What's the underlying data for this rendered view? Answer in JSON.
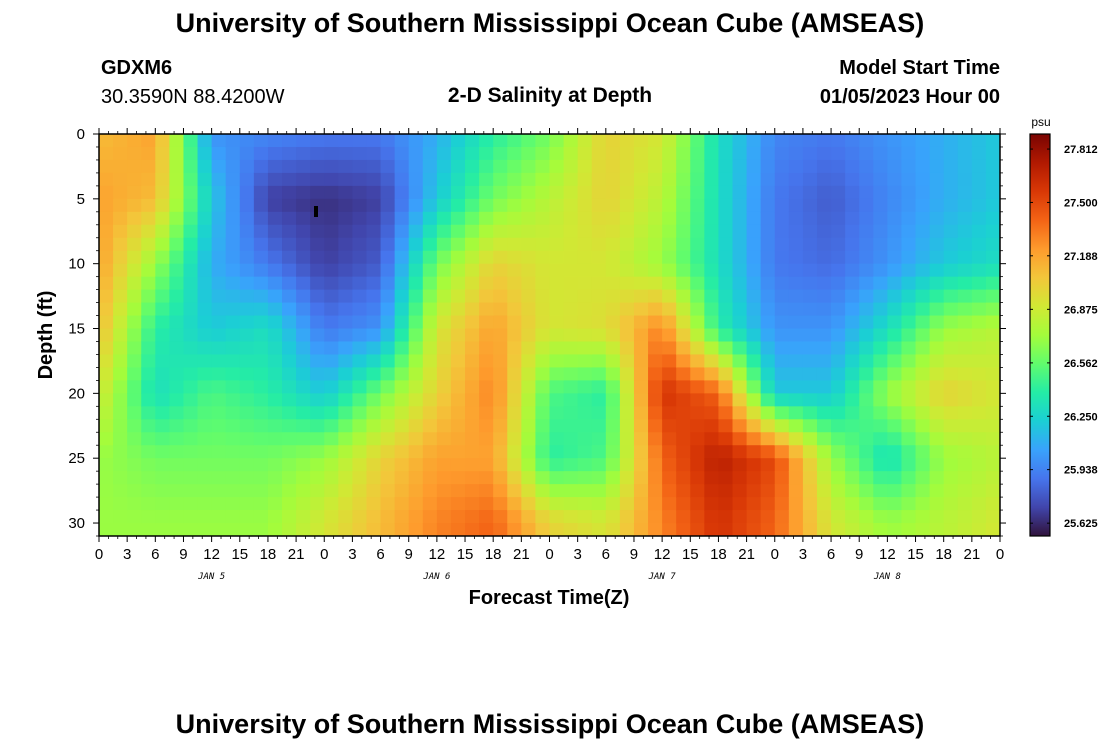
{
  "page": {
    "title": "University of Southern Mississippi Ocean Cube (AMSEAS)",
    "footer_title": "University of Southern Mississippi Ocean Cube (AMSEAS)",
    "station_id": "GDXM6",
    "coordinates": "30.3590N  88.4200W",
    "subtitle": "2-D Salinity at Depth",
    "model_start_label": "Model Start Time",
    "model_start_value": "01/05/2023 Hour 00"
  },
  "chart_data": {
    "type": "heatmap",
    "title": "2-D Salinity at Depth",
    "xlabel": "Forecast Time(Z)",
    "ylabel": "Depth (ft)",
    "x_range_hours": [
      0,
      96
    ],
    "x_ticks": [
      "0",
      "3",
      "6",
      "9",
      "12",
      "15",
      "18",
      "21",
      "0",
      "3",
      "6",
      "9",
      "12",
      "15",
      "18",
      "21",
      "0",
      "3",
      "6",
      "9",
      "12",
      "15",
      "18",
      "21",
      "0",
      "3",
      "6",
      "9",
      "12",
      "15",
      "18",
      "21",
      "0"
    ],
    "day_labels": [
      "JAN 5",
      "JAN 6",
      "JAN 7",
      "JAN 8"
    ],
    "y_range_ft": [
      0,
      31
    ],
    "y_ticks": [
      "0",
      "5",
      "10",
      "15",
      "20",
      "25",
      "30"
    ],
    "y_inverted": true,
    "colorbar": {
      "unit": "psu",
      "ticks": [
        "27.812",
        "27.500",
        "27.188",
        "26.875",
        "26.562",
        "26.250",
        "25.938",
        "25.625"
      ],
      "min": 25.55,
      "max": 27.9,
      "colormap": [
        "#30123b",
        "#4145ab",
        "#4675ed",
        "#39a2fc",
        "#1bcfd4",
        "#24eca6",
        "#61fc6c",
        "#a4fc3b",
        "#d1e834",
        "#f3c63a",
        "#fe9b2d",
        "#f36315",
        "#d93806",
        "#b11901",
        "#7a0402"
      ]
    },
    "data_columns_x_hours": [
      0,
      6,
      12,
      18,
      24,
      30,
      36,
      42,
      48,
      54,
      60,
      66,
      72,
      78,
      84,
      90,
      96
    ],
    "data_rows_depth_ft": [
      0,
      5,
      10,
      15,
      20,
      25,
      30
    ],
    "z": [
      [
        27.1,
        27.2,
        26.0,
        25.95,
        25.9,
        25.9,
        26.1,
        26.4,
        26.6,
        27.0,
        26.9,
        26.3,
        25.95,
        25.9,
        26.0,
        26.1,
        26.2
      ],
      [
        27.2,
        27.1,
        26.2,
        25.7,
        25.65,
        25.7,
        26.2,
        26.6,
        26.8,
        27.0,
        26.8,
        26.3,
        25.9,
        25.8,
        25.95,
        26.1,
        26.2
      ],
      [
        27.2,
        26.7,
        26.1,
        25.9,
        25.7,
        25.8,
        26.6,
        27.0,
        26.9,
        26.9,
        26.7,
        26.3,
        25.9,
        25.85,
        26.0,
        26.2,
        26.3
      ],
      [
        27.1,
        26.4,
        26.2,
        26.3,
        25.9,
        26.0,
        26.9,
        27.2,
        26.9,
        26.95,
        27.3,
        26.4,
        26.0,
        26.0,
        26.3,
        26.7,
        26.8
      ],
      [
        26.9,
        26.3,
        26.5,
        26.4,
        26.2,
        26.6,
        27.0,
        27.3,
        26.5,
        26.4,
        27.6,
        27.4,
        26.2,
        26.2,
        26.7,
        27.0,
        26.9
      ],
      [
        26.7,
        26.6,
        26.6,
        26.6,
        26.7,
        27.0,
        27.2,
        27.2,
        26.4,
        26.5,
        27.4,
        27.7,
        27.5,
        26.7,
        26.3,
        26.7,
        26.8
      ],
      [
        26.7,
        26.7,
        26.7,
        26.7,
        26.9,
        27.1,
        27.3,
        27.4,
        27.0,
        26.9,
        27.3,
        27.6,
        27.4,
        26.9,
        26.7,
        26.8,
        26.9
      ]
    ]
  }
}
